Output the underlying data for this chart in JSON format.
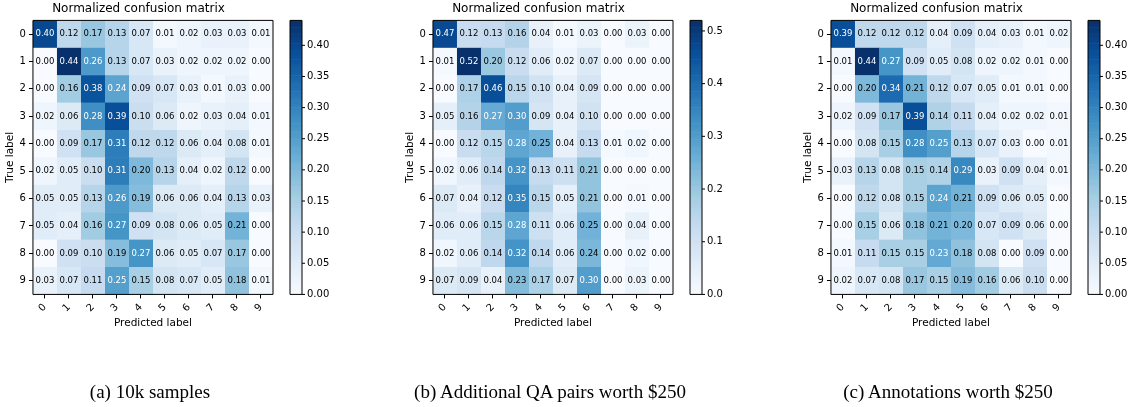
{
  "chart_data": [
    {
      "type": "heatmap",
      "title": "Normalized confusion matrix",
      "xlabel": "Predicted label",
      "ylabel": "True label",
      "categories": [
        "0",
        "1",
        "2",
        "3",
        "4",
        "5",
        "6",
        "7",
        "8",
        "9"
      ],
      "y_categories": [
        "0",
        "1",
        "2",
        "3",
        "4",
        "5",
        "6",
        "7",
        "8",
        "9"
      ],
      "cells": [
        [
          0.4,
          0.12,
          0.17,
          0.13,
          0.07,
          0.01,
          0.02,
          0.03,
          0.03,
          0.01
        ],
        [
          0.0,
          0.44,
          0.26,
          0.13,
          0.07,
          0.03,
          0.02,
          0.02,
          0.02,
          0.0
        ],
        [
          0.0,
          0.16,
          0.38,
          0.24,
          0.09,
          0.07,
          0.03,
          0.01,
          0.03,
          0.0
        ],
        [
          0.02,
          0.06,
          0.28,
          0.39,
          0.1,
          0.06,
          0.02,
          0.03,
          0.04,
          0.01
        ],
        [
          0.0,
          0.09,
          0.17,
          0.31,
          0.12,
          0.12,
          0.06,
          0.04,
          0.08,
          0.01
        ],
        [
          0.02,
          0.05,
          0.1,
          0.31,
          0.2,
          0.13,
          0.04,
          0.02,
          0.12,
          0.0
        ],
        [
          0.05,
          0.05,
          0.13,
          0.26,
          0.19,
          0.06,
          0.06,
          0.04,
          0.13,
          0.03
        ],
        [
          0.05,
          0.04,
          0.16,
          0.27,
          0.09,
          0.08,
          0.06,
          0.05,
          0.21,
          0.0
        ],
        [
          0.0,
          0.09,
          0.1,
          0.19,
          0.27,
          0.06,
          0.05,
          0.07,
          0.17,
          0.0
        ],
        [
          0.03,
          0.07,
          0.11,
          0.25,
          0.15,
          0.08,
          0.07,
          0.05,
          0.18,
          0.01
        ]
      ],
      "cell_labels": [
        [
          "0.40",
          "0.12",
          "0.17",
          "0.13",
          "0.07",
          "0.01",
          "0.02",
          "0.03",
          "0.03",
          "0.01"
        ],
        [
          "0.00",
          "0.44",
          "0.26",
          "0.13",
          "0.07",
          "0.03",
          "0.02",
          "0.02",
          "0.02",
          "0.00"
        ],
        [
          "0.00",
          "0.16",
          "0.38",
          "0.24",
          "0.09",
          "0.07",
          "0.03",
          "0.01",
          "0.03",
          "0.00"
        ],
        [
          "0.02",
          "0.06",
          "0.28",
          "0.39",
          "0.10",
          "0.06",
          "0.02",
          "0.03",
          "0.04",
          "0.01"
        ],
        [
          "0.00",
          "0.09",
          "0.17",
          "0.31",
          "0.12",
          "0.12",
          "0.06",
          "0.04",
          "0.08",
          "0.01"
        ],
        [
          "0.02",
          "0.05",
          "0.10",
          "0.31",
          "0.20",
          "0.13",
          "0.04",
          "0.02",
          "0.12",
          "0.00"
        ],
        [
          "0.05",
          "0.05",
          "0.13",
          "0.26",
          "0.19",
          "0.06",
          "0.06",
          "0.04",
          "0.13",
          "0.03"
        ],
        [
          "0.05",
          "0.04",
          "0.16",
          "0.27",
          "0.09",
          "0.08",
          "0.06",
          "0.05",
          "0.21",
          "0.00"
        ],
        [
          "0.00",
          "0.09",
          "0.10",
          "0.19",
          "0.27",
          "0.06",
          "0.05",
          "0.07",
          "0.17",
          "0.00"
        ],
        [
          "0.03",
          "0.07",
          "0.11",
          "0.25",
          "0.15",
          "0.08",
          "0.07",
          "0.05",
          "0.18",
          "0.01"
        ]
      ],
      "clim": [
        0,
        0.44
      ],
      "cticks": [
        {
          "value": 0,
          "label": "0.00"
        },
        {
          "value": 0.05,
          "label": "0.05"
        },
        {
          "value": 0.1,
          "label": "0.10"
        },
        {
          "value": 0.15,
          "label": "0.15"
        },
        {
          "value": 0.2,
          "label": "0.20"
        },
        {
          "value": 0.25,
          "label": "0.25"
        },
        {
          "value": 0.3,
          "label": "0.30"
        },
        {
          "value": 0.35,
          "label": "0.35"
        },
        {
          "value": 0.4,
          "label": "0.40"
        }
      ],
      "annotations": [
        "(a) 10k samples"
      ]
    },
    {
      "type": "heatmap",
      "title": "Normalized confusion matrix",
      "xlabel": "Predicted label",
      "ylabel": "True label",
      "categories": [
        "0",
        "1",
        "2",
        "3",
        "4",
        "5",
        "6",
        "7",
        "8",
        "9"
      ],
      "y_categories": [
        "0",
        "1",
        "2",
        "3",
        "4",
        "5",
        "6",
        "7",
        "8",
        "9"
      ],
      "cells": [
        [
          0.47,
          0.12,
          0.13,
          0.16,
          0.04,
          0.01,
          0.03,
          0.0,
          0.03,
          0.0
        ],
        [
          0.01,
          0.52,
          0.2,
          0.12,
          0.06,
          0.02,
          0.07,
          0.0,
          0.0,
          0.0
        ],
        [
          0.0,
          0.17,
          0.46,
          0.15,
          0.1,
          0.04,
          0.09,
          0.0,
          0.0,
          0.0
        ],
        [
          0.05,
          0.16,
          0.27,
          0.3,
          0.09,
          0.04,
          0.1,
          0.0,
          0.0,
          0.0
        ],
        [
          0.0,
          0.12,
          0.15,
          0.28,
          0.25,
          0.04,
          0.13,
          0.01,
          0.02,
          0.0
        ],
        [
          0.02,
          0.06,
          0.14,
          0.32,
          0.13,
          0.11,
          0.21,
          0.0,
          0.0,
          0.0
        ],
        [
          0.07,
          0.04,
          0.12,
          0.35,
          0.15,
          0.05,
          0.21,
          0.0,
          0.01,
          0.0
        ],
        [
          0.06,
          0.06,
          0.15,
          0.28,
          0.11,
          0.06,
          0.25,
          0.0,
          0.04,
          0.0
        ],
        [
          0.02,
          0.06,
          0.14,
          0.32,
          0.14,
          0.06,
          0.24,
          0.0,
          0.02,
          0.0
        ],
        [
          0.07,
          0.09,
          0.04,
          0.23,
          0.17,
          0.07,
          0.3,
          0.0,
          0.03,
          0.0
        ]
      ],
      "cell_labels": [
        [
          "0.47",
          "0.12",
          "0.13",
          "0.16",
          "0.04",
          "0.01",
          "0.03",
          "0.00",
          "0.03",
          "0.00"
        ],
        [
          "0.01",
          "0.52",
          "0.20",
          "0.12",
          "0.06",
          "0.02",
          "0.07",
          "0.00",
          "0.00",
          "0.00"
        ],
        [
          "0.00",
          "0.17",
          "0.46",
          "0.15",
          "0.10",
          "0.04",
          "0.09",
          "0.00",
          "0.00",
          "0.00"
        ],
        [
          "0.05",
          "0.16",
          "0.27",
          "0.30",
          "0.09",
          "0.04",
          "0.10",
          "0.00",
          "0.00",
          "0.00"
        ],
        [
          "0.00",
          "0.12",
          "0.15",
          "0.28",
          "0.25",
          "0.04",
          "0.13",
          "0.01",
          "0.02",
          "0.00"
        ],
        [
          "0.02",
          "0.06",
          "0.14",
          "0.32",
          "0.13",
          "0.11",
          "0.21",
          "0.00",
          "0.00",
          "0.00"
        ],
        [
          "0.07",
          "0.04",
          "0.12",
          "0.35",
          "0.15",
          "0.05",
          "0.21",
          "0.00",
          "0.01",
          "0.00"
        ],
        [
          "0.06",
          "0.06",
          "0.15",
          "0.28",
          "0.11",
          "0.06",
          "0.25",
          "0.00",
          "0.04",
          "0.00"
        ],
        [
          "0.02",
          "0.06",
          "0.14",
          "0.32",
          "0.14",
          "0.06",
          "0.24",
          "0.00",
          "0.02",
          "0.00"
        ],
        [
          "0.07",
          "0.09",
          "0.04",
          "0.23",
          "0.17",
          "0.07",
          "0.30",
          "0.00",
          "0.03",
          "0.00"
        ]
      ],
      "clim": [
        0,
        0.52
      ],
      "cticks": [
        {
          "value": 0,
          "label": "0.0"
        },
        {
          "value": 0.1,
          "label": "0.1"
        },
        {
          "value": 0.2,
          "label": "0.2"
        },
        {
          "value": 0.3,
          "label": "0.3"
        },
        {
          "value": 0.4,
          "label": "0.4"
        },
        {
          "value": 0.5,
          "label": "0.5"
        }
      ],
      "annotations": [
        "(b) Additional QA pairs worth $250"
      ]
    },
    {
      "type": "heatmap",
      "title": "Normalized confusion matrix",
      "xlabel": "Predicted label",
      "ylabel": "True label",
      "categories": [
        "0",
        "1",
        "2",
        "3",
        "4",
        "5",
        "6",
        "7",
        "8",
        "9"
      ],
      "y_categories": [
        "0",
        "1",
        "2",
        "3",
        "4",
        "5",
        "6",
        "7",
        "8",
        "9"
      ],
      "cells": [
        [
          0.39,
          0.12,
          0.12,
          0.12,
          0.04,
          0.09,
          0.04,
          0.03,
          0.01,
          0.02
        ],
        [
          0.01,
          0.44,
          0.27,
          0.09,
          0.05,
          0.08,
          0.02,
          0.02,
          0.01,
          0.0
        ],
        [
          0.0,
          0.2,
          0.34,
          0.21,
          0.12,
          0.07,
          0.05,
          0.01,
          0.01,
          0.0
        ],
        [
          0.02,
          0.09,
          0.17,
          0.39,
          0.14,
          0.11,
          0.04,
          0.02,
          0.02,
          0.01
        ],
        [
          0.0,
          0.08,
          0.15,
          0.28,
          0.25,
          0.13,
          0.07,
          0.03,
          0.0,
          0.01
        ],
        [
          0.03,
          0.13,
          0.08,
          0.15,
          0.14,
          0.29,
          0.03,
          0.09,
          0.04,
          0.01
        ],
        [
          0.0,
          0.12,
          0.08,
          0.15,
          0.24,
          0.21,
          0.09,
          0.06,
          0.05,
          0.0
        ],
        [
          0.0,
          0.15,
          0.06,
          0.18,
          0.21,
          0.2,
          0.07,
          0.09,
          0.06,
          0.0
        ],
        [
          0.01,
          0.11,
          0.15,
          0.15,
          0.23,
          0.18,
          0.08,
          0.0,
          0.09,
          0.0
        ],
        [
          0.02,
          0.07,
          0.08,
          0.17,
          0.15,
          0.19,
          0.16,
          0.06,
          0.1,
          0.0
        ]
      ],
      "cell_labels": [
        [
          "0.39",
          "0.12",
          "0.12",
          "0.12",
          "0.04",
          "0.09",
          "0.04",
          "0.03",
          "0.01",
          "0.02"
        ],
        [
          "0.01",
          "0.44",
          "0.27",
          "0.09",
          "0.05",
          "0.08",
          "0.02",
          "0.02",
          "0.01",
          "0.00"
        ],
        [
          "0.00",
          "0.20",
          "0.34",
          "0.21",
          "0.12",
          "0.07",
          "0.05",
          "0.01",
          "0.01",
          "0.00"
        ],
        [
          "0.02",
          "0.09",
          "0.17",
          "0.39",
          "0.14",
          "0.11",
          "0.04",
          "0.02",
          "0.02",
          "0.01"
        ],
        [
          "0.00",
          "0.08",
          "0.15",
          "0.28",
          "0.25",
          "0.13",
          "0.07",
          "0.03",
          "0.00",
          "0.01"
        ],
        [
          "0.03",
          "0.13",
          "0.08",
          "0.15",
          "0.14",
          "0.29",
          "0.03",
          "0.09",
          "0.04",
          "0.01"
        ],
        [
          "0.00",
          "0.12",
          "0.08",
          "0.15",
          "0.24",
          "0.21",
          "0.09",
          "0.06",
          "0.05",
          "0.00"
        ],
        [
          "0.00",
          "0.15",
          "0.06",
          "0.18",
          "0.21",
          "0.20",
          "0.07",
          "0.09",
          "0.06",
          "0.00"
        ],
        [
          "0.01",
          "0.11",
          "0.15",
          "0.15",
          "0.23",
          "0.18",
          "0.08",
          "0.00",
          "0.09",
          "0.00"
        ],
        [
          "0.02",
          "0.07",
          "0.08",
          "0.17",
          "0.15",
          "0.19",
          "0.16",
          "0.06",
          "0.10",
          "0.00"
        ]
      ],
      "clim": [
        0,
        0.44
      ],
      "cticks": [
        {
          "value": 0,
          "label": "0.00"
        },
        {
          "value": 0.05,
          "label": "0.05"
        },
        {
          "value": 0.1,
          "label": "0.10"
        },
        {
          "value": 0.15,
          "label": "0.15"
        },
        {
          "value": 0.2,
          "label": "0.20"
        },
        {
          "value": 0.25,
          "label": "0.25"
        },
        {
          "value": 0.3,
          "label": "0.30"
        },
        {
          "value": 0.35,
          "label": "0.35"
        },
        {
          "value": 0.4,
          "label": "0.40"
        }
      ],
      "annotations": [
        "(c) Annotations worth $250"
      ]
    }
  ]
}
